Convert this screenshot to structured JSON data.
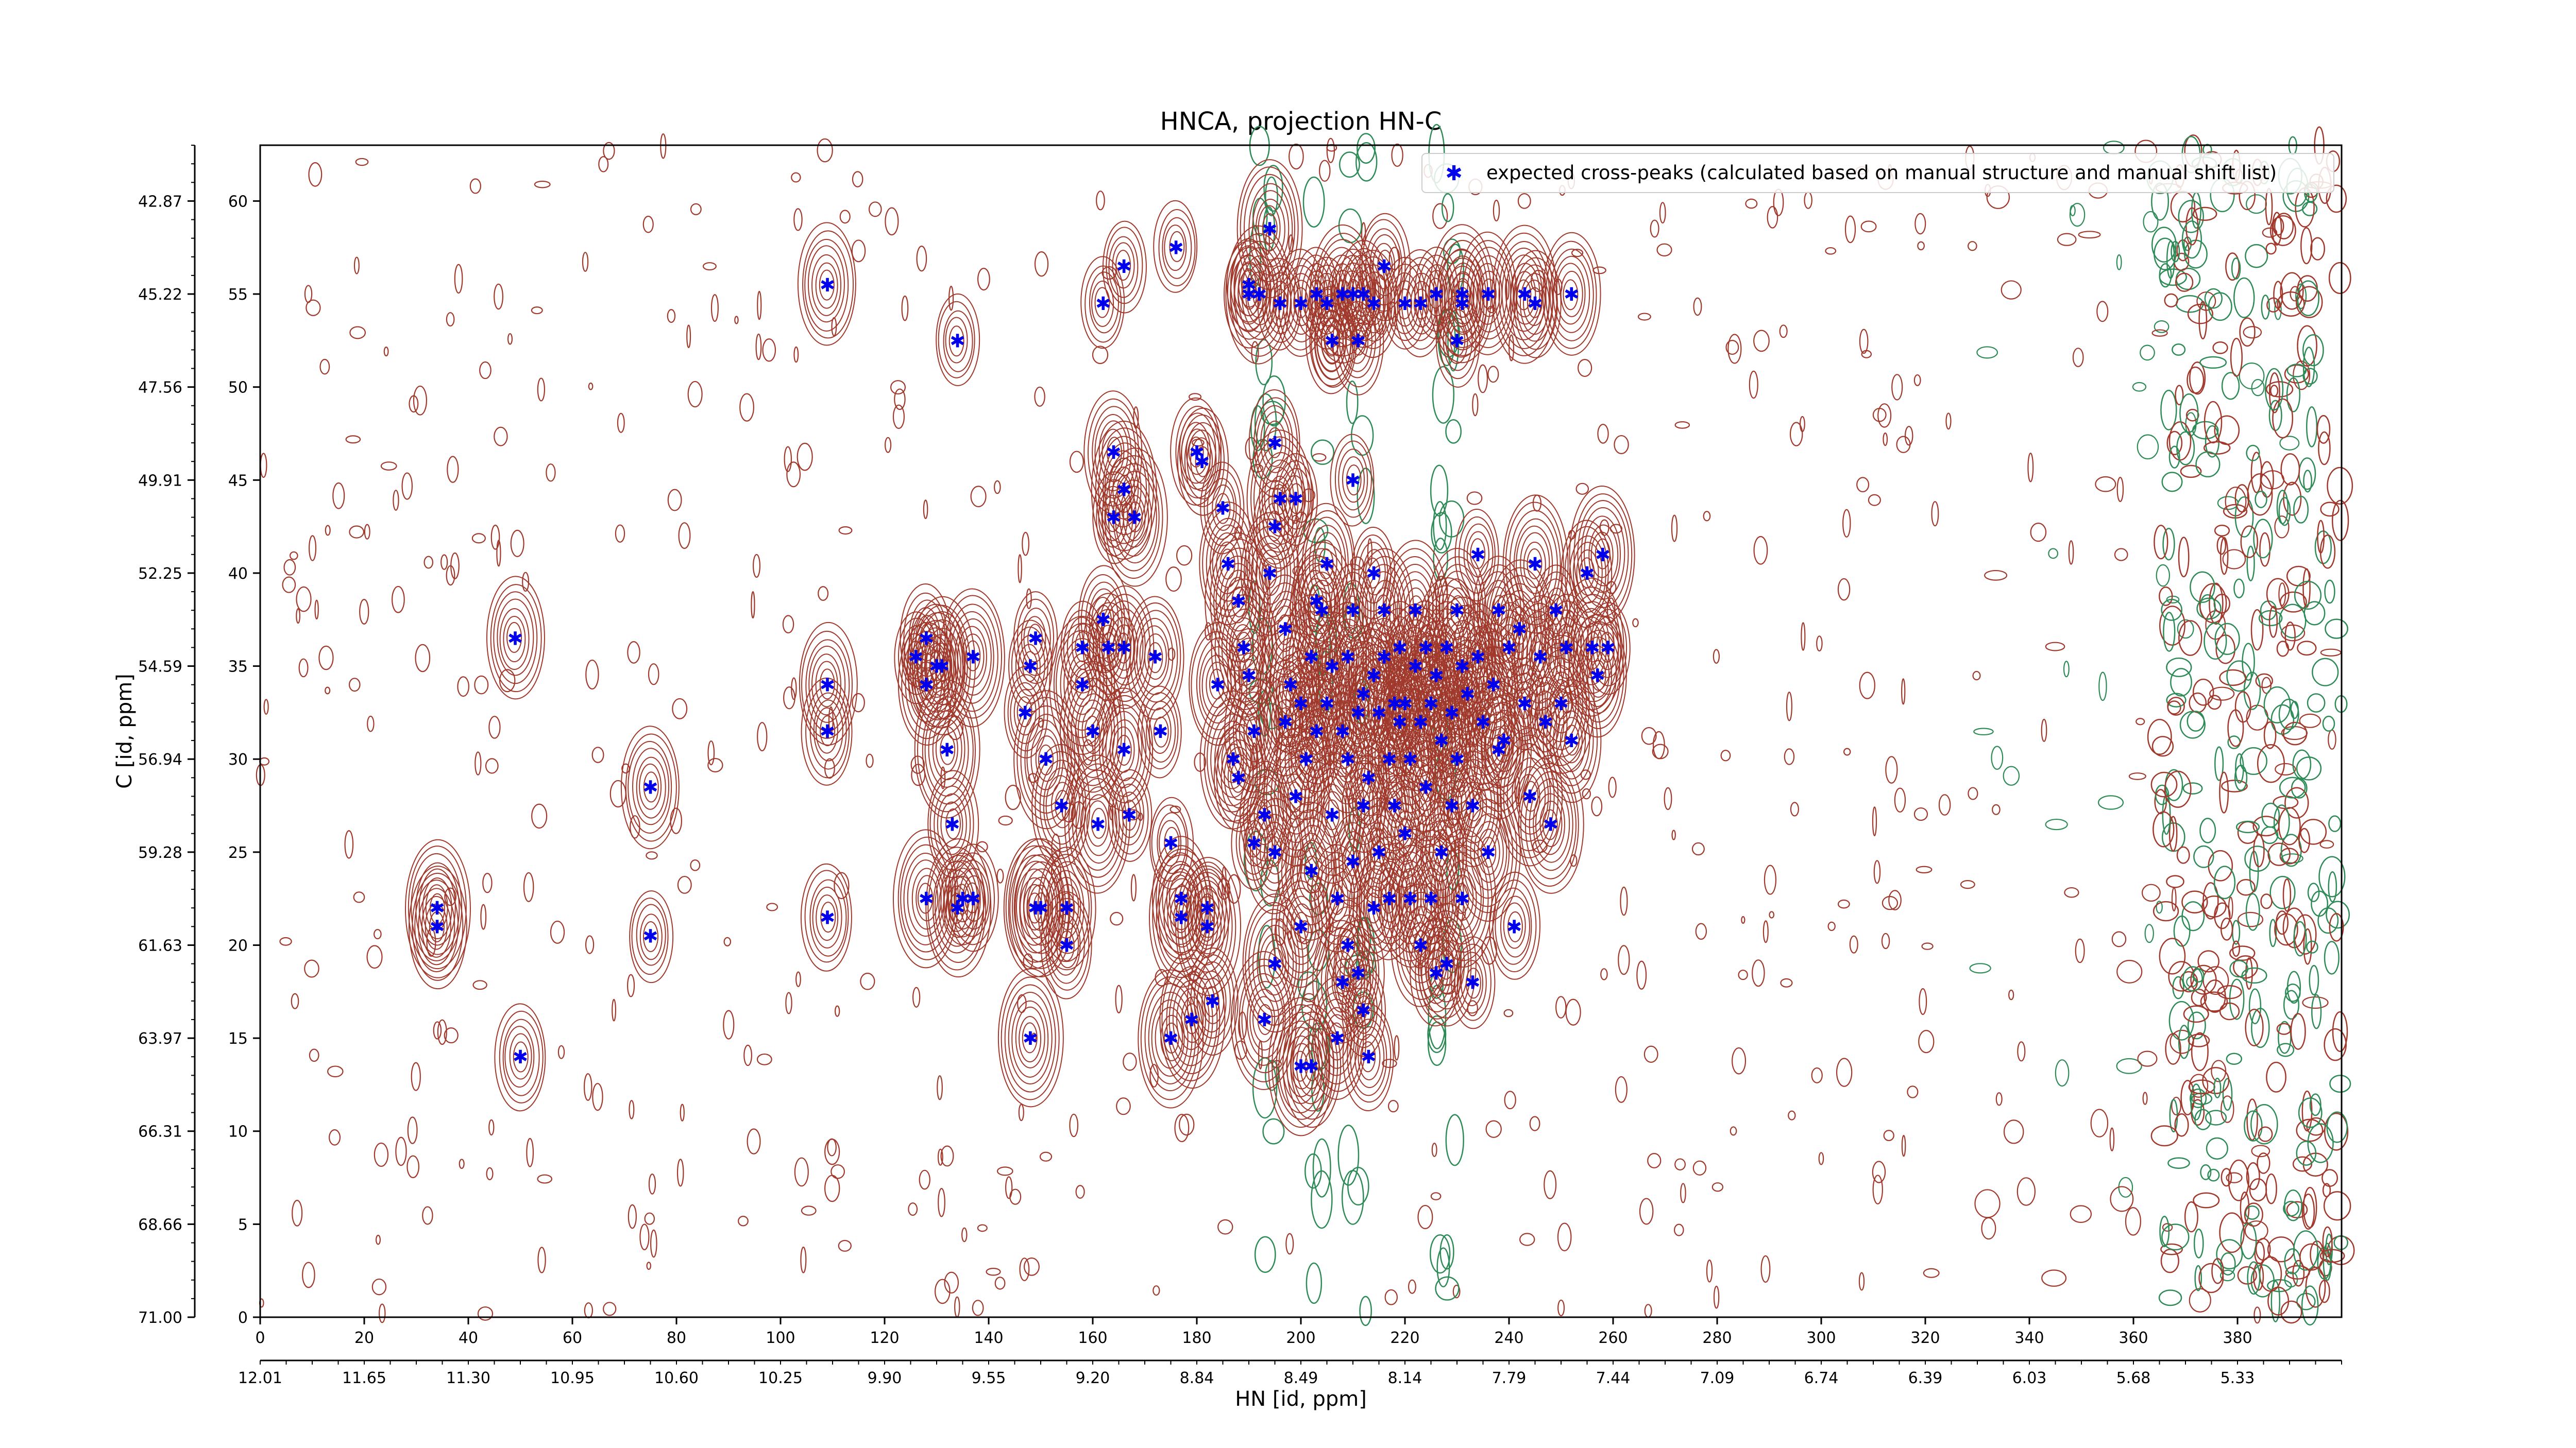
{
  "chart_data": {
    "type": "scatter",
    "title": "HNCA, projection HN-C",
    "xlabel": "HN [id, ppm]",
    "ylabel": "C [id, ppm]",
    "xlim": [
      0,
      400
    ],
    "ylim": [
      0,
      63
    ],
    "x_ticks": [
      0,
      20,
      40,
      60,
      80,
      100,
      120,
      140,
      160,
      180,
      200,
      220,
      240,
      260,
      280,
      300,
      320,
      340,
      360,
      380
    ],
    "y_ticks": [
      0,
      5,
      10,
      15,
      20,
      25,
      30,
      35,
      40,
      45,
      50,
      55,
      60
    ],
    "secondary_x_ticks": [
      "12.01",
      "11.65",
      "11.30",
      "10.95",
      "10.60",
      "10.25",
      "9.90",
      "9.55",
      "9.20",
      "8.84",
      "8.49",
      "8.14",
      "7.79",
      "7.44",
      "7.09",
      "6.74",
      "6.39",
      "6.03",
      "5.68",
      "5.33"
    ],
    "secondary_y_ticks": [
      "71.00",
      "68.66",
      "66.31",
      "63.97",
      "61.63",
      "59.28",
      "56.94",
      "54.59",
      "52.25",
      "49.91",
      "47.56",
      "45.22",
      "42.87"
    ],
    "legend": {
      "position": "top-right",
      "label": "expected cross-peaks (calculated based on manual structure and manual shift list)"
    },
    "colors": {
      "positive_contour": "#a0392c",
      "negative_contour": "#2e8b57",
      "marker": "#0000ee"
    },
    "grid": false,
    "series": [
      {
        "name": "expected cross-peaks (calculated based on manual structure and manual shift list)",
        "points": [
          [
            34,
            22
          ],
          [
            34,
            21
          ],
          [
            49,
            36.5
          ],
          [
            50,
            14
          ],
          [
            75,
            28.5
          ],
          [
            75,
            20.5
          ],
          [
            109,
            55.5
          ],
          [
            109,
            34
          ],
          [
            109,
            31.5
          ],
          [
            109,
            21.5
          ],
          [
            126,
            35.5
          ],
          [
            128,
            36.5
          ],
          [
            128,
            34
          ],
          [
            130,
            35
          ],
          [
            131,
            35
          ],
          [
            132,
            30.5
          ],
          [
            133,
            26.5
          ],
          [
            134,
            22
          ],
          [
            135,
            22.5
          ],
          [
            137,
            22.5
          ],
          [
            137,
            35.5
          ],
          [
            128,
            22.5
          ],
          [
            134,
            52.5
          ],
          [
            147,
            32.5
          ],
          [
            148,
            35
          ],
          [
            149,
            36.5
          ],
          [
            149,
            22
          ],
          [
            150,
            22
          ],
          [
            151,
            30
          ],
          [
            148,
            15
          ],
          [
            154,
            27.5
          ],
          [
            155,
            22
          ],
          [
            155,
            20
          ],
          [
            158,
            34
          ],
          [
            158,
            36
          ],
          [
            160,
            31.5
          ],
          [
            161,
            26.5
          ],
          [
            162,
            37.5
          ],
          [
            163,
            36
          ],
          [
            164,
            43
          ],
          [
            164,
            46.5
          ],
          [
            166,
            44.5
          ],
          [
            166,
            36
          ],
          [
            166,
            30.5
          ],
          [
            167,
            27
          ],
          [
            168,
            43
          ],
          [
            172,
            35.5
          ],
          [
            173,
            31.5
          ],
          [
            175,
            25.5
          ],
          [
            177,
            22.5
          ],
          [
            175,
            15
          ],
          [
            179,
            16
          ],
          [
            177,
            21.5
          ],
          [
            176,
            57.5
          ],
          [
            166,
            56.5
          ],
          [
            162,
            54.5
          ],
          [
            180,
            46.5
          ],
          [
            181,
            46
          ],
          [
            182,
            22
          ],
          [
            182,
            21
          ],
          [
            183,
            17
          ],
          [
            184,
            34
          ],
          [
            185,
            43.5
          ],
          [
            186,
            40.5
          ],
          [
            187,
            30
          ],
          [
            188,
            29
          ],
          [
            188,
            38.5
          ],
          [
            189,
            36
          ],
          [
            190,
            34.5
          ],
          [
            191,
            31.5
          ],
          [
            191,
            25.5
          ],
          [
            193,
            27
          ],
          [
            193,
            16
          ],
          [
            195,
            25
          ],
          [
            195,
            19
          ],
          [
            194,
            40
          ],
          [
            195,
            42.5
          ],
          [
            196,
            44
          ],
          [
            197,
            32
          ],
          [
            197,
            37
          ],
          [
            198,
            34
          ],
          [
            199,
            28
          ],
          [
            200,
            33
          ],
          [
            200,
            21
          ],
          [
            201,
            30
          ],
          [
            202,
            35.5
          ],
          [
            202,
            24
          ],
          [
            203,
            31.5
          ],
          [
            203,
            38.5
          ],
          [
            204,
            38
          ],
          [
            205,
            40.5
          ],
          [
            205,
            33
          ],
          [
            206,
            35
          ],
          [
            206,
            27
          ],
          [
            207,
            22.5
          ],
          [
            207,
            15
          ],
          [
            208,
            31.5
          ],
          [
            208,
            18
          ],
          [
            209,
            35.5
          ],
          [
            209,
            30
          ],
          [
            209,
            20
          ],
          [
            210,
            38
          ],
          [
            210,
            24.5
          ],
          [
            211,
            32.5
          ],
          [
            211,
            18.5
          ],
          [
            212,
            33.5
          ],
          [
            212,
            27.5
          ],
          [
            212,
            16.5
          ],
          [
            213,
            29
          ],
          [
            213,
            14
          ],
          [
            214,
            40
          ],
          [
            214,
            34.5
          ],
          [
            214,
            22
          ],
          [
            215,
            32.5
          ],
          [
            215,
            25
          ],
          [
            216,
            38
          ],
          [
            216,
            35.5
          ],
          [
            217,
            30
          ],
          [
            217,
            22.5
          ],
          [
            218,
            33
          ],
          [
            218,
            27.5
          ],
          [
            219,
            36
          ],
          [
            219,
            32
          ],
          [
            220,
            33
          ],
          [
            220,
            26
          ],
          [
            221,
            30
          ],
          [
            221,
            22.5
          ],
          [
            222,
            38
          ],
          [
            222,
            35
          ],
          [
            223,
            32
          ],
          [
            223,
            20
          ],
          [
            224,
            36
          ],
          [
            224,
            28.5
          ],
          [
            225,
            33
          ],
          [
            225,
            22.5
          ],
          [
            226,
            34.5
          ],
          [
            226,
            18.5
          ],
          [
            227,
            31
          ],
          [
            227,
            25
          ],
          [
            228,
            36
          ],
          [
            228,
            19
          ],
          [
            229,
            32.5
          ],
          [
            229,
            27.5
          ],
          [
            230,
            38
          ],
          [
            230,
            30
          ],
          [
            231,
            35
          ],
          [
            231,
            22.5
          ],
          [
            232,
            33.5
          ],
          [
            233,
            27.5
          ],
          [
            233,
            18
          ],
          [
            234,
            35.5
          ],
          [
            234,
            41
          ],
          [
            235,
            32
          ],
          [
            236,
            25
          ],
          [
            237,
            34
          ],
          [
            238,
            38
          ],
          [
            238,
            30.5
          ],
          [
            239,
            31
          ],
          [
            240,
            36
          ],
          [
            241,
            21
          ],
          [
            242,
            37
          ],
          [
            243,
            33
          ],
          [
            244,
            28
          ],
          [
            245,
            40.5
          ],
          [
            246,
            35.5
          ],
          [
            247,
            32
          ],
          [
            248,
            26.5
          ],
          [
            249,
            38
          ],
          [
            250,
            33
          ],
          [
            251,
            36
          ],
          [
            252,
            31
          ],
          [
            255,
            40
          ],
          [
            256,
            36
          ],
          [
            257,
            34.5
          ],
          [
            258,
            41
          ],
          [
            259,
            36
          ],
          [
            190,
            55
          ],
          [
            192,
            55
          ],
          [
            194,
            58.5
          ],
          [
            196,
            54.5
          ],
          [
            200,
            54.5
          ],
          [
            203,
            55
          ],
          [
            205,
            54.5
          ],
          [
            206,
            52.5
          ],
          [
            208,
            55
          ],
          [
            210,
            55
          ],
          [
            212,
            55
          ],
          [
            214,
            54.5
          ],
          [
            206,
            52.5
          ],
          [
            211,
            52.5
          ],
          [
            216,
            56.5
          ],
          [
            220,
            54.5
          ],
          [
            223,
            54.5
          ],
          [
            226,
            55
          ],
          [
            231,
            54.5
          ],
          [
            236,
            55
          ],
          [
            243,
            55
          ],
          [
            245,
            54.5
          ],
          [
            252,
            55
          ],
          [
            231,
            55
          ],
          [
            230,
            52.5
          ],
          [
            190,
            55.5
          ],
          [
            200,
            13.5
          ],
          [
            202,
            13.5
          ],
          [
            195,
            47
          ],
          [
            199,
            44
          ],
          [
            210,
            45
          ]
        ]
      }
    ]
  }
}
